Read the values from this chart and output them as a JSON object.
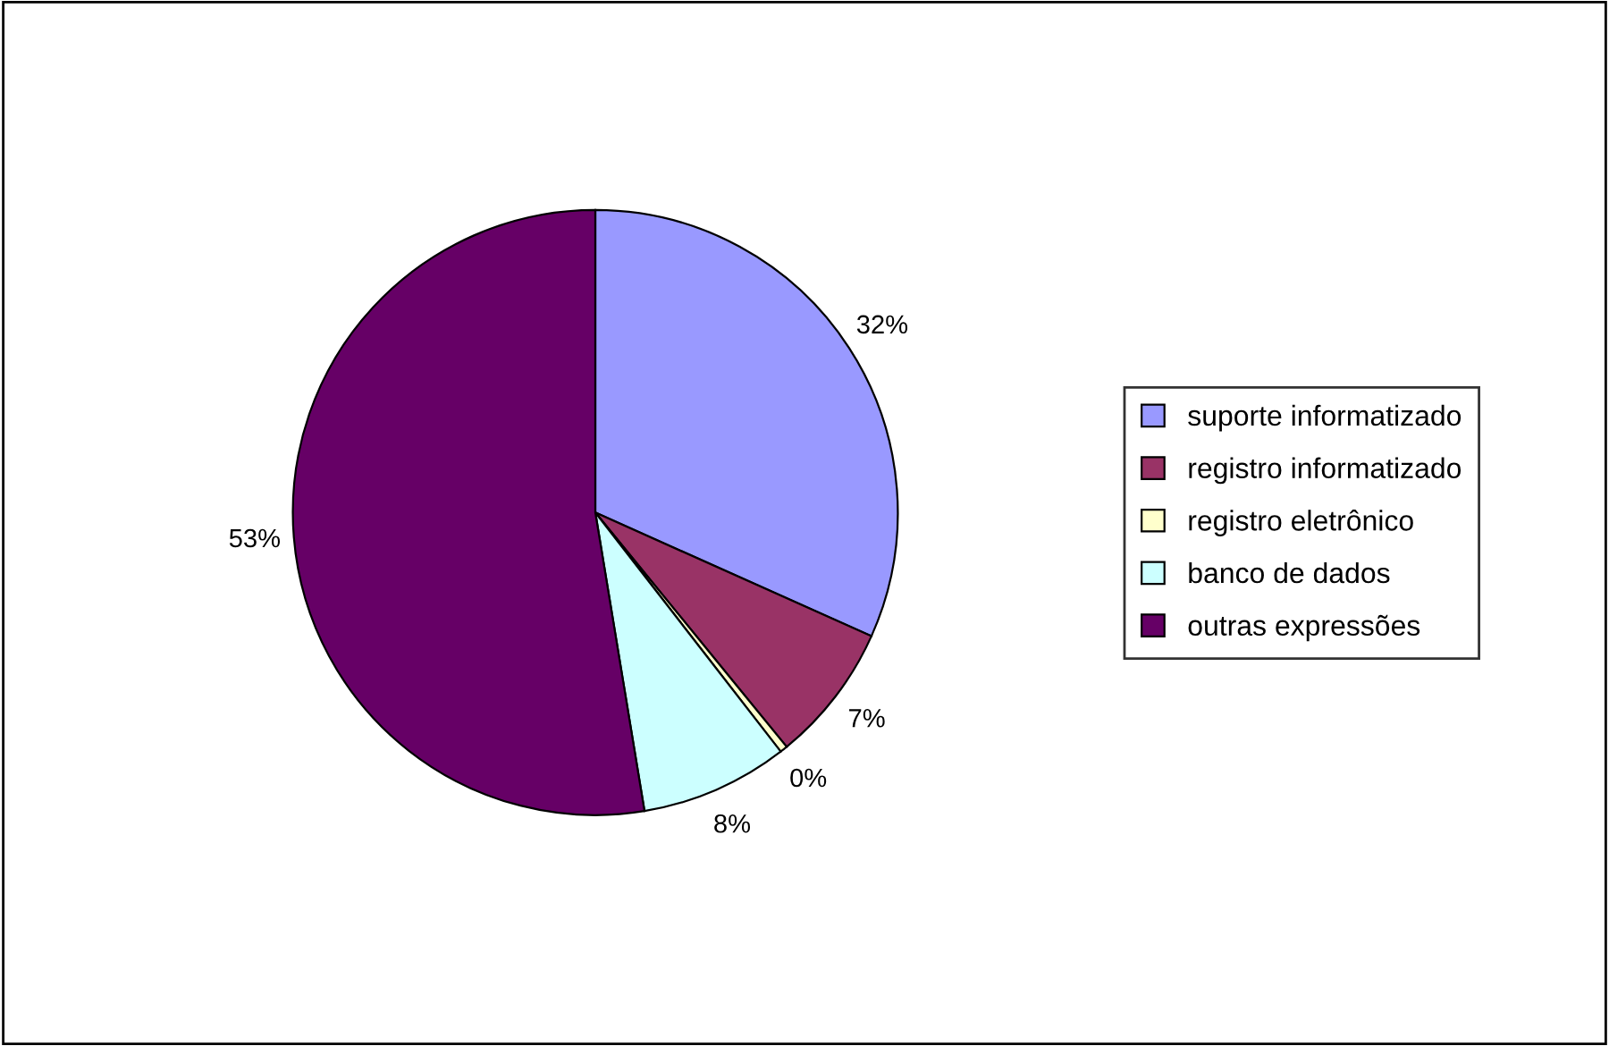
{
  "chart_data": {
    "type": "pie",
    "categories": [
      "suporte informatizado",
      "registro informatizado",
      "registro eletrônico",
      "banco de dados",
      "outras expressões"
    ],
    "values": [
      31.7,
      7.4,
      0.4,
      7.9,
      52.6
    ],
    "value_labels": [
      "32%",
      "7%",
      "0%",
      "8%",
      "53%"
    ],
    "colors": [
      "#9999ff",
      "#993366",
      "#ffffcc",
      "#ccffff",
      "#660066"
    ],
    "legend": "right"
  }
}
